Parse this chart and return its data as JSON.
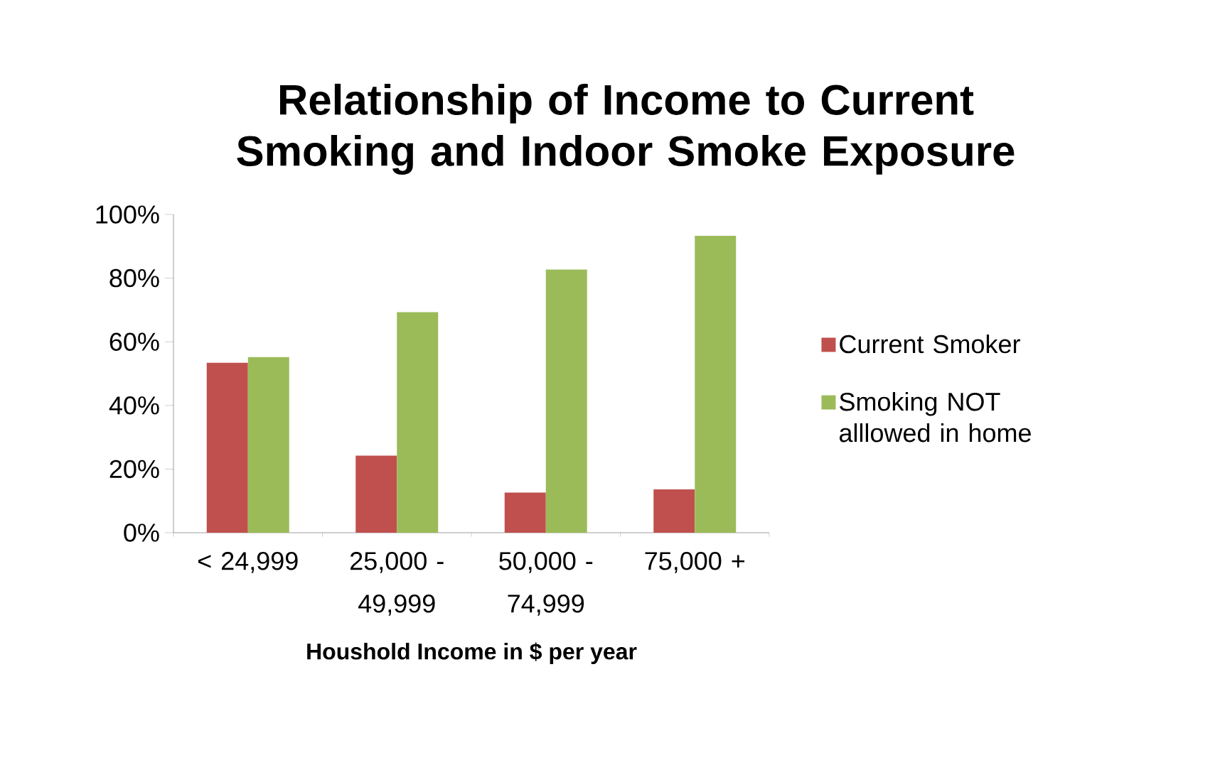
{
  "chart_data": {
    "type": "bar",
    "title": "Relationship of Income to Current Smoking and Indoor Smoke Exposure",
    "xlabel": "Houshold Income in $ per year",
    "categories": [
      "< 24,999",
      "25,000 - 49,999",
      "50,000 - 74,999",
      "75,000 +"
    ],
    "series": [
      {
        "name": "Current Smoker",
        "color": "#c0504d",
        "values": [
          53.4,
          24.2,
          12.6,
          13.6
        ]
      },
      {
        "name": "Smoking NOT alllowed in home",
        "color": "#9bbb59",
        "values": [
          55.2,
          69.3,
          82.7,
          93.3
        ]
      }
    ],
    "ylim": [
      0,
      100
    ],
    "yticks": [
      {
        "value": 0,
        "label": "0%"
      },
      {
        "value": 20,
        "label": "20%"
      },
      {
        "value": 40,
        "label": "40%"
      },
      {
        "value": 60,
        "label": "60%"
      },
      {
        "value": 80,
        "label": "80%"
      },
      {
        "value": 100,
        "label": "100%"
      }
    ],
    "grid": false,
    "legend": "right"
  }
}
